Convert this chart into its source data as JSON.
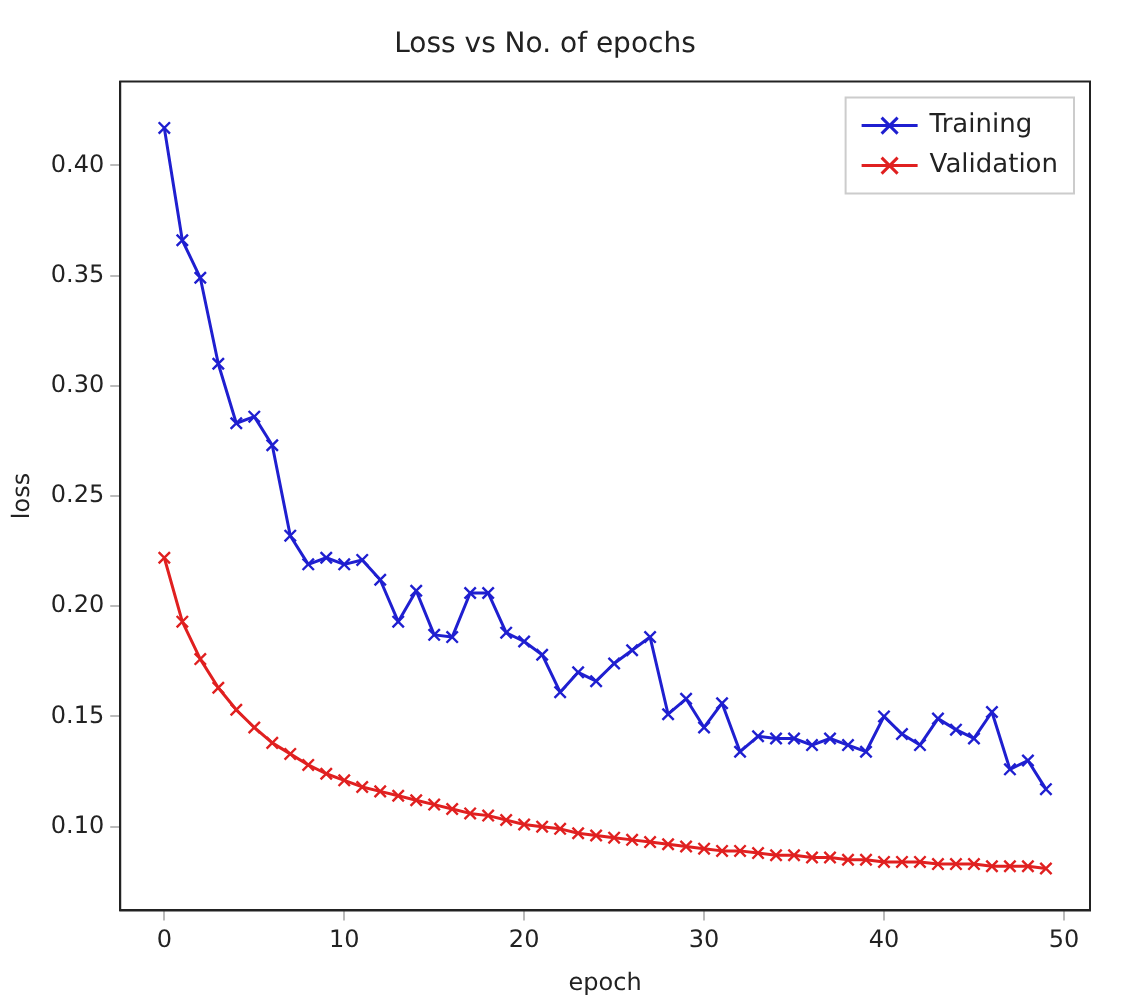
{
  "chart_data": {
    "type": "line",
    "title": "Loss vs No. of epochs",
    "xlabel": "epoch",
    "ylabel": "loss",
    "x": [
      0,
      1,
      2,
      3,
      4,
      5,
      6,
      7,
      8,
      9,
      10,
      11,
      12,
      13,
      14,
      15,
      16,
      17,
      18,
      19,
      20,
      21,
      22,
      23,
      24,
      25,
      26,
      27,
      28,
      29,
      30,
      31,
      32,
      33,
      34,
      35,
      36,
      37,
      38,
      39,
      40,
      41,
      42,
      43,
      44,
      45,
      46,
      47,
      48,
      49
    ],
    "series": [
      {
        "name": "Training",
        "color": "#1f1fd0",
        "values": [
          0.417,
          0.366,
          0.349,
          0.31,
          0.283,
          0.286,
          0.273,
          0.232,
          0.219,
          0.222,
          0.219,
          0.221,
          0.212,
          0.193,
          0.207,
          0.187,
          0.186,
          0.206,
          0.206,
          0.188,
          0.184,
          0.178,
          0.161,
          0.17,
          0.166,
          0.174,
          0.18,
          0.186,
          0.151,
          0.158,
          0.145,
          0.156,
          0.134,
          0.141,
          0.14,
          0.14,
          0.137,
          0.14,
          0.137,
          0.134,
          0.15,
          0.142,
          0.137,
          0.149,
          0.144,
          0.14,
          0.152,
          0.126,
          0.13,
          0.117
        ]
      },
      {
        "name": "Validation",
        "color": "#e02020",
        "values": [
          0.222,
          0.193,
          0.176,
          0.163,
          0.153,
          0.145,
          0.138,
          0.133,
          0.128,
          0.124,
          0.121,
          0.118,
          0.116,
          0.114,
          0.112,
          0.11,
          0.108,
          0.106,
          0.105,
          0.103,
          0.101,
          0.1,
          0.099,
          0.097,
          0.096,
          0.095,
          0.094,
          0.093,
          0.092,
          0.091,
          0.09,
          0.089,
          0.089,
          0.088,
          0.087,
          0.087,
          0.086,
          0.086,
          0.085,
          0.085,
          0.084,
          0.084,
          0.084,
          0.083,
          0.083,
          0.083,
          0.082,
          0.082,
          0.082,
          0.081
        ]
      }
    ],
    "xlim": [
      -2.45,
      51.45
    ],
    "xticks": [
      0,
      10,
      20,
      30,
      40,
      50
    ],
    "ylim": [
      0.062,
      0.438
    ],
    "yticks": [
      {
        "value": 0.1,
        "label": "0.10"
      },
      {
        "value": 0.15,
        "label": "0.15"
      },
      {
        "value": 0.2,
        "label": "0.20"
      },
      {
        "value": 0.25,
        "label": "0.25"
      },
      {
        "value": 0.3,
        "label": "0.30"
      },
      {
        "value": 0.35,
        "label": "0.35"
      },
      {
        "value": 0.4,
        "label": "0.40"
      }
    ],
    "grid": false,
    "legend": "top right",
    "marker": "cross",
    "line_style": "solid"
  }
}
